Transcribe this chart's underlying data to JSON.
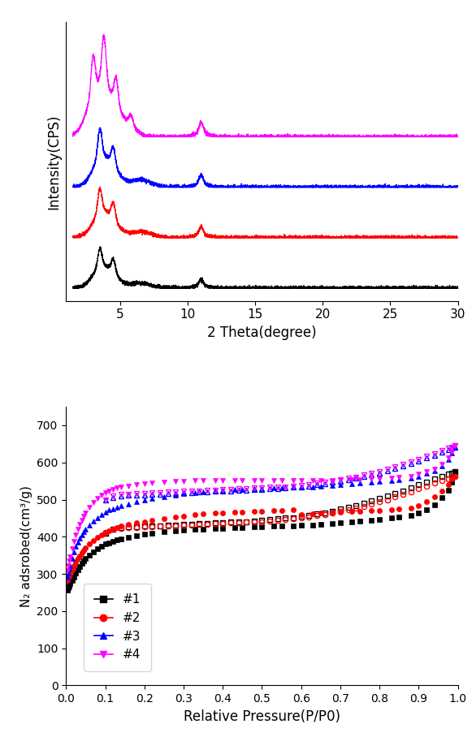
{
  "xrd": {
    "xlim": [
      1,
      30
    ],
    "xlabel": "2 Theta(degree)",
    "ylabel": "Intensity(CPS)",
    "xticks": [
      5,
      10,
      15,
      20,
      25,
      30
    ],
    "colors": [
      "black",
      "red",
      "blue",
      "magenta"
    ],
    "seed": 1234
  },
  "n2": {
    "xlim": [
      0,
      1.0
    ],
    "ylim": [
      0,
      750
    ],
    "xlabel": "Relative Pressure(P/P0)",
    "ylabel": "N₂ adsrobed(cm³/g)",
    "xticks": [
      0.0,
      0.1,
      0.2,
      0.3,
      0.4,
      0.5,
      0.6,
      0.7,
      0.8,
      0.9,
      1.0
    ],
    "yticks": [
      0,
      100,
      200,
      300,
      400,
      500,
      600,
      700
    ],
    "colors": [
      "black",
      "red",
      "blue",
      "magenta"
    ],
    "legend_labels": [
      "#1",
      "#2",
      "#3",
      "#4"
    ],
    "markers_ads": [
      "s",
      "o",
      "^",
      "v"
    ],
    "markers_des": [
      "s",
      "o",
      "^",
      "v"
    ],
    "s1_ads_x": [
      0.004,
      0.006,
      0.008,
      0.01,
      0.015,
      0.02,
      0.025,
      0.03,
      0.035,
      0.04,
      0.045,
      0.05,
      0.06,
      0.07,
      0.08,
      0.09,
      0.1,
      0.11,
      0.12,
      0.13,
      0.14,
      0.16,
      0.18,
      0.2,
      0.22,
      0.25,
      0.28,
      0.3,
      0.33,
      0.35,
      0.38,
      0.4,
      0.43,
      0.45,
      0.48,
      0.5,
      0.53,
      0.55,
      0.58,
      0.6,
      0.63,
      0.65,
      0.68,
      0.7,
      0.73,
      0.75,
      0.78,
      0.8,
      0.83,
      0.85,
      0.88,
      0.9,
      0.92,
      0.94,
      0.96,
      0.975,
      0.985,
      0.993
    ],
    "s1_ads_y": [
      256,
      262,
      268,
      273,
      282,
      292,
      303,
      312,
      320,
      328,
      335,
      341,
      351,
      360,
      367,
      374,
      380,
      384,
      388,
      391,
      394,
      399,
      403,
      407,
      410,
      413,
      416,
      418,
      420,
      421,
      422,
      423,
      424,
      425,
      426,
      427,
      428,
      429,
      430,
      431,
      432,
      434,
      436,
      438,
      440,
      442,
      444,
      447,
      451,
      454,
      458,
      463,
      472,
      485,
      505,
      525,
      547,
      575
    ],
    "s1_des_x": [
      0.993,
      0.985,
      0.975,
      0.96,
      0.94,
      0.92,
      0.9,
      0.88,
      0.86,
      0.84,
      0.82,
      0.8,
      0.78,
      0.76,
      0.74,
      0.72,
      0.7,
      0.68,
      0.66,
      0.64,
      0.62,
      0.6,
      0.58,
      0.56,
      0.54,
      0.52,
      0.5,
      0.48,
      0.46,
      0.44,
      0.42,
      0.4,
      0.38,
      0.36,
      0.34,
      0.32,
      0.3,
      0.28,
      0.26,
      0.24,
      0.22,
      0.2,
      0.18,
      0.16,
      0.14,
      0.12,
      0.1
    ],
    "s1_des_y": [
      575,
      572,
      568,
      563,
      556,
      548,
      540,
      532,
      524,
      517,
      510,
      503,
      496,
      490,
      484,
      479,
      474,
      469,
      465,
      461,
      458,
      455,
      452,
      450,
      448,
      446,
      444,
      443,
      441,
      440,
      439,
      438,
      437,
      436,
      435,
      434,
      433,
      432,
      431,
      430,
      429,
      428,
      427,
      426,
      425,
      420,
      410
    ],
    "s2_ads_x": [
      0.004,
      0.006,
      0.008,
      0.01,
      0.015,
      0.02,
      0.025,
      0.03,
      0.035,
      0.04,
      0.045,
      0.05,
      0.06,
      0.07,
      0.08,
      0.09,
      0.1,
      0.11,
      0.12,
      0.13,
      0.14,
      0.16,
      0.18,
      0.2,
      0.22,
      0.25,
      0.28,
      0.3,
      0.33,
      0.35,
      0.38,
      0.4,
      0.43,
      0.45,
      0.48,
      0.5,
      0.53,
      0.55,
      0.58,
      0.6,
      0.63,
      0.65,
      0.68,
      0.7,
      0.73,
      0.75,
      0.78,
      0.8,
      0.83,
      0.85,
      0.88,
      0.9,
      0.92,
      0.94,
      0.96,
      0.975,
      0.985,
      0.993
    ],
    "s2_ads_y": [
      283,
      290,
      296,
      301,
      312,
      322,
      332,
      341,
      349,
      357,
      363,
      370,
      381,
      390,
      398,
      405,
      412,
      417,
      421,
      425,
      428,
      433,
      437,
      441,
      445,
      449,
      453,
      456,
      459,
      461,
      463,
      465,
      466,
      467,
      468,
      469,
      470,
      471,
      472,
      460,
      462,
      464,
      466,
      467,
      468,
      469,
      470,
      471,
      472,
      474,
      478,
      484,
      494,
      507,
      523,
      540,
      555,
      563
    ],
    "s2_des_x": [
      0.993,
      0.985,
      0.975,
      0.96,
      0.94,
      0.92,
      0.9,
      0.88,
      0.86,
      0.84,
      0.82,
      0.8,
      0.78,
      0.76,
      0.74,
      0.72,
      0.7,
      0.68,
      0.66,
      0.64,
      0.62,
      0.6,
      0.58,
      0.56,
      0.54,
      0.52,
      0.5,
      0.48,
      0.46,
      0.44,
      0.42,
      0.4,
      0.38,
      0.36,
      0.34,
      0.32,
      0.3,
      0.28,
      0.26,
      0.24,
      0.22,
      0.2,
      0.18,
      0.16,
      0.14,
      0.12,
      0.1
    ],
    "s2_des_y": [
      563,
      560,
      556,
      551,
      544,
      536,
      529,
      521,
      514,
      507,
      500,
      494,
      488,
      482,
      477,
      472,
      468,
      464,
      460,
      457,
      454,
      451,
      449,
      447,
      445,
      443,
      441,
      440,
      439,
      438,
      437,
      436,
      435,
      434,
      433,
      432,
      431,
      430,
      429,
      428,
      427,
      426,
      425,
      424,
      423,
      420,
      412
    ],
    "s3_ads_x": [
      0.004,
      0.006,
      0.008,
      0.01,
      0.015,
      0.02,
      0.025,
      0.03,
      0.035,
      0.04,
      0.045,
      0.05,
      0.06,
      0.07,
      0.08,
      0.09,
      0.1,
      0.11,
      0.12,
      0.13,
      0.14,
      0.16,
      0.18,
      0.2,
      0.22,
      0.25,
      0.28,
      0.3,
      0.33,
      0.35,
      0.38,
      0.4,
      0.43,
      0.45,
      0.48,
      0.5,
      0.53,
      0.55,
      0.58,
      0.6,
      0.63,
      0.65,
      0.68,
      0.7,
      0.73,
      0.75,
      0.78,
      0.8,
      0.83,
      0.85,
      0.88,
      0.9,
      0.92,
      0.94,
      0.96,
      0.975,
      0.985,
      0.993
    ],
    "s3_ads_y": [
      291,
      302,
      313,
      323,
      342,
      360,
      374,
      386,
      396,
      405,
      413,
      420,
      432,
      443,
      452,
      460,
      467,
      472,
      476,
      480,
      483,
      489,
      494,
      499,
      503,
      508,
      513,
      516,
      519,
      521,
      523,
      525,
      527,
      528,
      529,
      530,
      531,
      532,
      533,
      534,
      535,
      537,
      539,
      541,
      543,
      545,
      547,
      549,
      551,
      554,
      558,
      563,
      570,
      578,
      590,
      608,
      625,
      641
    ],
    "s3_des_x": [
      0.993,
      0.985,
      0.975,
      0.96,
      0.94,
      0.92,
      0.9,
      0.88,
      0.86,
      0.84,
      0.82,
      0.8,
      0.78,
      0.76,
      0.74,
      0.72,
      0.7,
      0.68,
      0.66,
      0.64,
      0.62,
      0.6,
      0.58,
      0.56,
      0.54,
      0.52,
      0.5,
      0.48,
      0.46,
      0.44,
      0.42,
      0.4,
      0.38,
      0.36,
      0.34,
      0.32,
      0.3,
      0.28,
      0.26,
      0.24,
      0.22,
      0.2,
      0.18,
      0.16,
      0.14,
      0.12,
      0.1
    ],
    "s3_des_y": [
      641,
      638,
      634,
      628,
      620,
      612,
      604,
      597,
      590,
      584,
      578,
      572,
      567,
      562,
      557,
      553,
      549,
      546,
      543,
      540,
      537,
      535,
      533,
      531,
      530,
      529,
      528,
      527,
      526,
      525,
      524,
      523,
      522,
      521,
      520,
      519,
      518,
      517,
      516,
      515,
      514,
      513,
      512,
      511,
      510,
      506,
      498
    ],
    "s4_ads_x": [
      0.004,
      0.006,
      0.008,
      0.01,
      0.015,
      0.02,
      0.025,
      0.03,
      0.035,
      0.04,
      0.045,
      0.05,
      0.06,
      0.07,
      0.08,
      0.09,
      0.1,
      0.11,
      0.12,
      0.13,
      0.14,
      0.16,
      0.18,
      0.2,
      0.22,
      0.25,
      0.28,
      0.3,
      0.33,
      0.35,
      0.38,
      0.4,
      0.43,
      0.45,
      0.48,
      0.5,
      0.53,
      0.55,
      0.58,
      0.6,
      0.63,
      0.65,
      0.68,
      0.7,
      0.73,
      0.75,
      0.78,
      0.8,
      0.83,
      0.85,
      0.88,
      0.9,
      0.92,
      0.94,
      0.96,
      0.975,
      0.985,
      0.993
    ],
    "s4_ads_y": [
      308,
      322,
      335,
      347,
      368,
      388,
      405,
      421,
      434,
      445,
      455,
      464,
      479,
      492,
      503,
      512,
      519,
      524,
      528,
      531,
      533,
      536,
      540,
      543,
      545,
      548,
      549,
      550,
      551,
      551,
      552,
      552,
      552,
      552,
      552,
      552,
      552,
      552,
      552,
      552,
      552,
      552,
      552,
      553,
      553,
      554,
      555,
      556,
      558,
      560,
      563,
      568,
      575,
      583,
      595,
      612,
      628,
      645
    ],
    "s4_des_x": [
      0.993,
      0.985,
      0.975,
      0.96,
      0.94,
      0.92,
      0.9,
      0.88,
      0.86,
      0.84,
      0.82,
      0.8,
      0.78,
      0.76,
      0.74,
      0.72,
      0.7,
      0.68,
      0.66,
      0.64,
      0.62,
      0.6,
      0.58,
      0.56,
      0.54,
      0.52,
      0.5,
      0.48,
      0.46,
      0.44,
      0.42,
      0.4,
      0.38,
      0.36,
      0.34,
      0.32,
      0.3,
      0.28,
      0.26,
      0.24,
      0.22,
      0.2,
      0.18,
      0.16,
      0.14,
      0.12,
      0.1
    ],
    "s4_des_y": [
      645,
      642,
      638,
      632,
      624,
      616,
      608,
      601,
      594,
      588,
      582,
      576,
      571,
      566,
      561,
      557,
      553,
      550,
      547,
      544,
      541,
      539,
      537,
      535,
      534,
      533,
      532,
      531,
      530,
      529,
      528,
      527,
      526,
      525,
      524,
      523,
      522,
      521,
      520,
      519,
      518,
      517,
      516,
      515,
      514,
      510,
      500
    ]
  }
}
